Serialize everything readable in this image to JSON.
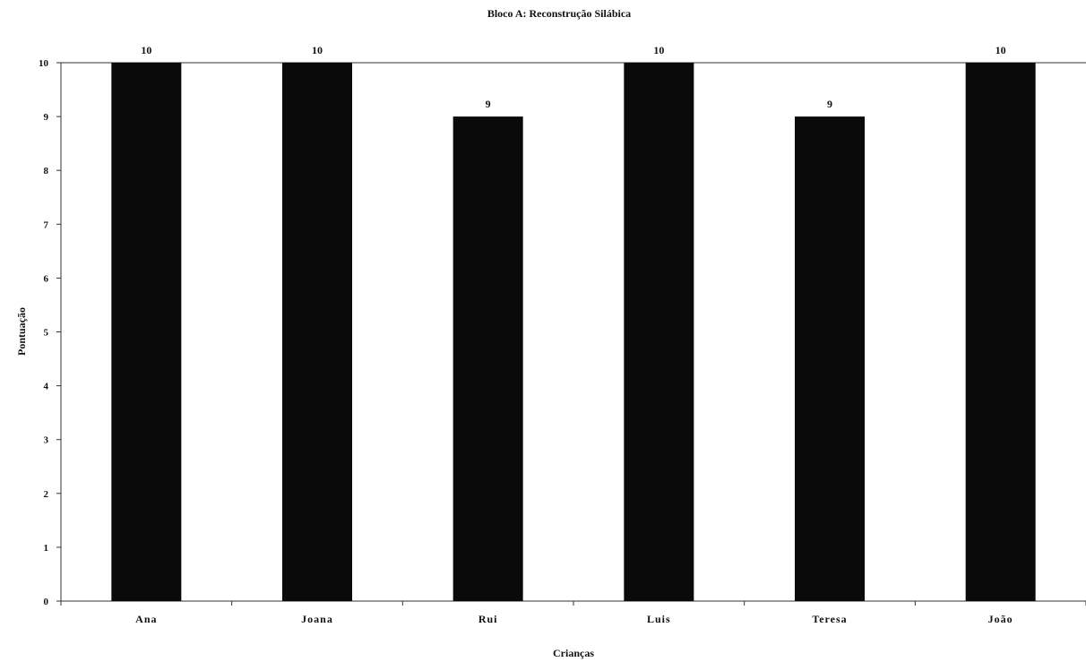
{
  "chart_data": {
    "type": "bar",
    "title": "Bloco A: Reconstrução Silábica",
    "xlabel": "Crianças",
    "ylabel": "Pontuação",
    "categories": [
      "Ana",
      "Joana",
      "Rui",
      "Luis",
      "Teresa",
      "João"
    ],
    "values": [
      10,
      10,
      9,
      10,
      9,
      10
    ],
    "ylim": [
      0,
      10
    ],
    "yticks": [
      0,
      1,
      2,
      3,
      4,
      5,
      6,
      7,
      8,
      9,
      10
    ],
    "data_labels": true,
    "grid": false,
    "legend": "none",
    "colors": {
      "bar": "#0a0a0a",
      "axis": "#333333",
      "background": "#ffffff"
    }
  }
}
